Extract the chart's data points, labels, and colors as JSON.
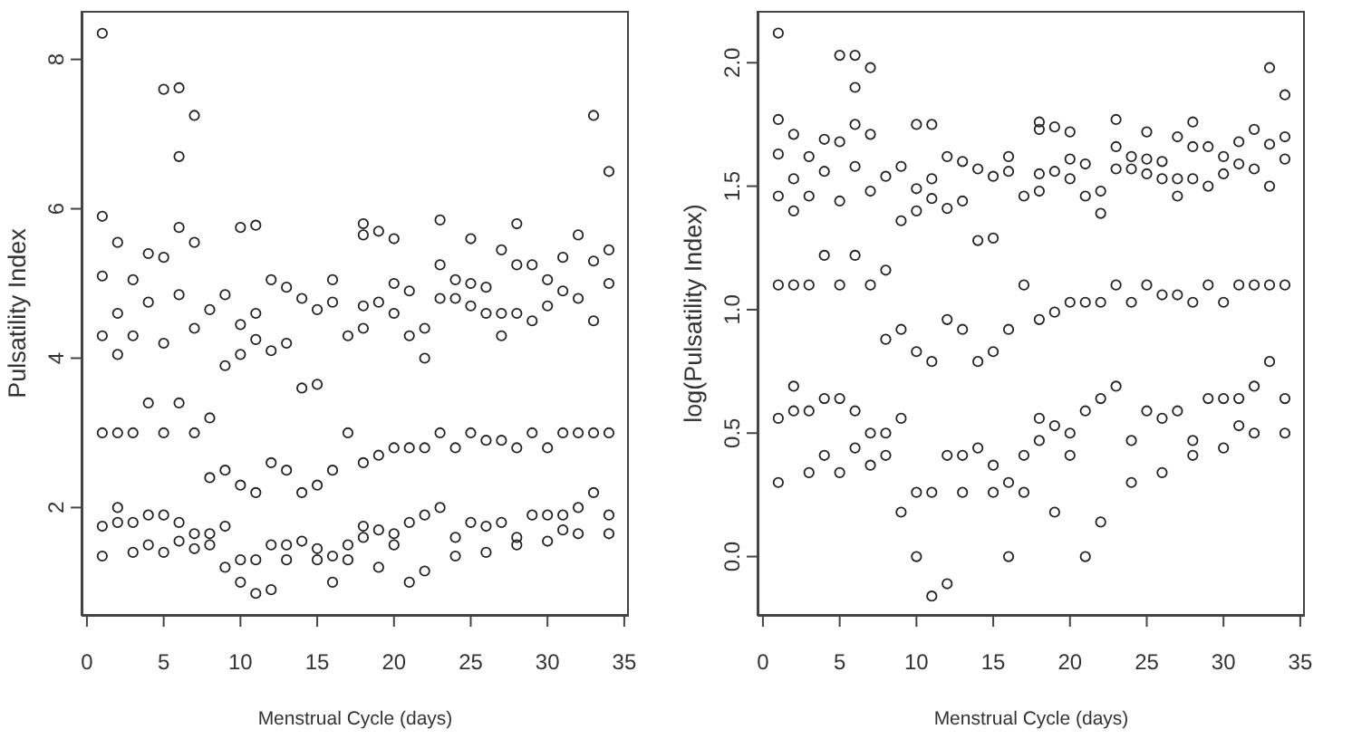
{
  "chart_data": [
    {
      "type": "scatter",
      "xlabel": "Menstrual Cycle (days)",
      "ylabel": "Pulsatility Index",
      "color": "#222222",
      "marker": "circle",
      "xlim": [
        -0.35,
        35.3
      ],
      "ylim": [
        0.55,
        8.65
      ],
      "xticks": [
        0,
        5,
        10,
        15,
        20,
        25,
        30,
        35
      ],
      "yticks": [
        2,
        4,
        6,
        8
      ],
      "x": [
        1,
        1,
        1,
        1,
        1,
        1,
        1,
        2,
        2,
        2,
        2,
        2,
        2,
        3,
        3,
        3,
        3,
        3,
        4,
        4,
        4,
        4,
        4,
        5,
        5,
        5,
        5,
        5,
        5,
        6,
        6,
        6,
        6,
        6,
        6,
        6,
        7,
        7,
        7,
        7,
        7,
        7,
        8,
        8,
        8,
        8,
        8,
        9,
        9,
        9,
        9,
        9,
        10,
        10,
        10,
        10,
        10,
        10,
        11,
        11,
        11,
        11,
        11,
        11,
        12,
        12,
        12,
        12,
        12,
        13,
        13,
        13,
        13,
        13,
        14,
        14,
        14,
        14,
        15,
        15,
        15,
        15,
        15,
        16,
        16,
        16,
        16,
        16,
        17,
        17,
        17,
        17,
        18,
        18,
        18,
        18,
        18,
        18,
        18,
        19,
        19,
        19,
        19,
        19,
        20,
        20,
        20,
        20,
        20,
        20,
        21,
        21,
        21,
        21,
        21,
        22,
        22,
        22,
        22,
        22,
        23,
        23,
        23,
        23,
        23,
        24,
        24,
        24,
        24,
        24,
        25,
        25,
        25,
        25,
        25,
        26,
        26,
        26,
        26,
        26,
        27,
        27,
        27,
        27,
        27,
        28,
        28,
        28,
        28,
        28,
        28,
        29,
        29,
        29,
        29,
        30,
        30,
        30,
        30,
        30,
        31,
        31,
        31,
        31,
        31,
        32,
        32,
        32,
        32,
        32,
        33,
        33,
        33,
        33,
        33,
        34,
        34,
        34,
        34,
        34,
        34
      ],
      "values": [
        8.35,
        5.9,
        5.1,
        4.3,
        3.0,
        1.75,
        1.35,
        5.55,
        4.6,
        4.05,
        3.0,
        2.0,
        1.8,
        5.05,
        4.3,
        3.0,
        1.8,
        1.4,
        5.4,
        4.75,
        3.4,
        1.9,
        1.5,
        7.6,
        5.35,
        4.2,
        3.0,
        1.9,
        1.4,
        7.62,
        6.7,
        5.75,
        4.85,
        3.4,
        1.8,
        1.55,
        7.25,
        5.55,
        4.4,
        3.0,
        1.65,
        1.45,
        4.65,
        3.2,
        2.4,
        1.65,
        1.5,
        4.85,
        3.9,
        2.5,
        1.75,
        1.2,
        5.75,
        4.45,
        4.05,
        2.3,
        1.3,
        1.0,
        5.78,
        4.6,
        4.25,
        2.2,
        1.3,
        0.85,
        5.05,
        4.1,
        2.6,
        1.5,
        0.9,
        4.95,
        4.2,
        2.5,
        1.5,
        1.3,
        4.8,
        3.6,
        2.2,
        1.55,
        4.65,
        3.65,
        2.3,
        1.45,
        1.3,
        5.05,
        4.75,
        2.5,
        1.35,
        1.0,
        4.3,
        3.0,
        1.5,
        1.3,
        5.8,
        5.65,
        4.7,
        4.4,
        2.6,
        1.75,
        1.6,
        5.7,
        4.75,
        2.7,
        1.7,
        1.2,
        5.6,
        5.0,
        4.6,
        2.8,
        1.65,
        1.5,
        4.9,
        4.3,
        2.8,
        1.8,
        1.0,
        4.4,
        4.0,
        2.8,
        1.9,
        1.15,
        5.85,
        5.25,
        4.8,
        3.0,
        2.0,
        5.05,
        4.8,
        2.8,
        1.6,
        1.35,
        5.6,
        5.0,
        4.7,
        3.0,
        1.8,
        4.95,
        4.6,
        2.9,
        1.75,
        1.4,
        5.45,
        4.6,
        4.3,
        2.9,
        1.8,
        5.8,
        5.25,
        4.6,
        2.8,
        1.6,
        1.5,
        5.25,
        4.5,
        3.0,
        1.9,
        5.05,
        4.7,
        2.8,
        1.9,
        1.55,
        5.35,
        4.9,
        3.0,
        1.9,
        1.7,
        5.65,
        4.8,
        3.0,
        2.0,
        1.65,
        7.25,
        5.3,
        4.5,
        3.0,
        2.2,
        6.5,
        5.45,
        5.0,
        3.0,
        1.9,
        1.65
      ]
    },
    {
      "type": "scatter",
      "xlabel": "Menstrual Cycle (days)",
      "ylabel": "log(Pulsatility Index)",
      "color": "#222222",
      "marker": "circle",
      "xlim": [
        -0.35,
        35.3
      ],
      "ylim": [
        -0.24,
        2.21
      ],
      "xticks": [
        0,
        5,
        10,
        15,
        20,
        25,
        30,
        35
      ],
      "yticks": [
        {
          "value": 0,
          "label": "0.0"
        },
        {
          "value": 0.5,
          "label": "0.5"
        },
        {
          "value": 1,
          "label": "1.0"
        },
        {
          "value": 1.5,
          "label": "1.5"
        },
        {
          "value": 2,
          "label": "2.0"
        }
      ],
      "x": [
        1,
        1,
        1,
        1,
        1,
        1,
        1,
        2,
        2,
        2,
        2,
        2,
        2,
        3,
        3,
        3,
        3,
        3,
        4,
        4,
        4,
        4,
        4,
        5,
        5,
        5,
        5,
        5,
        5,
        6,
        6,
        6,
        6,
        6,
        6,
        6,
        7,
        7,
        7,
        7,
        7,
        7,
        8,
        8,
        8,
        8,
        8,
        9,
        9,
        9,
        9,
        9,
        10,
        10,
        10,
        10,
        10,
        10,
        11,
        11,
        11,
        11,
        11,
        11,
        12,
        12,
        12,
        12,
        12,
        13,
        13,
        13,
        13,
        13,
        14,
        14,
        14,
        14,
        15,
        15,
        15,
        15,
        15,
        16,
        16,
        16,
        16,
        16,
        17,
        17,
        17,
        17,
        18,
        18,
        18,
        18,
        18,
        18,
        18,
        19,
        19,
        19,
        19,
        19,
        20,
        20,
        20,
        20,
        20,
        20,
        21,
        21,
        21,
        21,
        21,
        22,
        22,
        22,
        22,
        22,
        23,
        23,
        23,
        23,
        23,
        24,
        24,
        24,
        24,
        24,
        25,
        25,
        25,
        25,
        25,
        26,
        26,
        26,
        26,
        26,
        27,
        27,
        27,
        27,
        27,
        28,
        28,
        28,
        28,
        28,
        28,
        29,
        29,
        29,
        29,
        30,
        30,
        30,
        30,
        30,
        31,
        31,
        31,
        31,
        31,
        32,
        32,
        32,
        32,
        32,
        33,
        33,
        33,
        33,
        33,
        34,
        34,
        34,
        34,
        34,
        34
      ],
      "values": [
        2.12,
        1.77,
        1.63,
        1.46,
        1.1,
        0.56,
        0.3,
        1.71,
        1.53,
        1.4,
        1.1,
        0.69,
        0.59,
        1.62,
        1.46,
        1.1,
        0.59,
        0.34,
        1.69,
        1.56,
        1.22,
        0.64,
        0.41,
        2.03,
        1.68,
        1.44,
        1.1,
        0.64,
        0.34,
        2.03,
        1.9,
        1.75,
        1.58,
        1.22,
        0.59,
        0.44,
        1.98,
        1.71,
        1.48,
        1.1,
        0.5,
        0.37,
        1.54,
        1.16,
        0.88,
        0.5,
        0.41,
        1.58,
        1.36,
        0.92,
        0.56,
        0.18,
        1.75,
        1.49,
        1.4,
        0.83,
        0.26,
        0.0,
        1.75,
        1.53,
        1.45,
        0.79,
        0.26,
        -0.16,
        1.62,
        1.41,
        0.96,
        0.41,
        -0.11,
        1.6,
        1.44,
        0.92,
        0.41,
        0.26,
        1.57,
        1.28,
        0.79,
        0.44,
        1.54,
        1.29,
        0.83,
        0.37,
        0.26,
        1.62,
        1.56,
        0.92,
        0.3,
        0.0,
        1.46,
        1.1,
        0.41,
        0.26,
        1.76,
        1.73,
        1.55,
        1.48,
        0.96,
        0.56,
        0.47,
        1.74,
        1.56,
        0.99,
        0.53,
        0.18,
        1.72,
        1.61,
        1.53,
        1.03,
        0.5,
        0.41,
        1.59,
        1.46,
        1.03,
        0.59,
        0.0,
        1.48,
        1.39,
        1.03,
        0.64,
        0.14,
        1.77,
        1.66,
        1.57,
        1.1,
        0.69,
        1.62,
        1.57,
        1.03,
        0.47,
        0.3,
        1.72,
        1.61,
        1.55,
        1.1,
        0.59,
        1.6,
        1.53,
        1.06,
        0.56,
        0.34,
        1.7,
        1.53,
        1.46,
        1.06,
        0.59,
        1.76,
        1.66,
        1.53,
        1.03,
        0.47,
        0.41,
        1.66,
        1.5,
        1.1,
        0.64,
        1.62,
        1.55,
        1.03,
        0.64,
        0.44,
        1.68,
        1.59,
        1.1,
        0.64,
        0.53,
        1.73,
        1.57,
        1.1,
        0.69,
        0.5,
        1.98,
        1.67,
        1.5,
        1.1,
        0.79,
        1.87,
        1.7,
        1.61,
        1.1,
        0.64,
        0.5
      ]
    }
  ]
}
